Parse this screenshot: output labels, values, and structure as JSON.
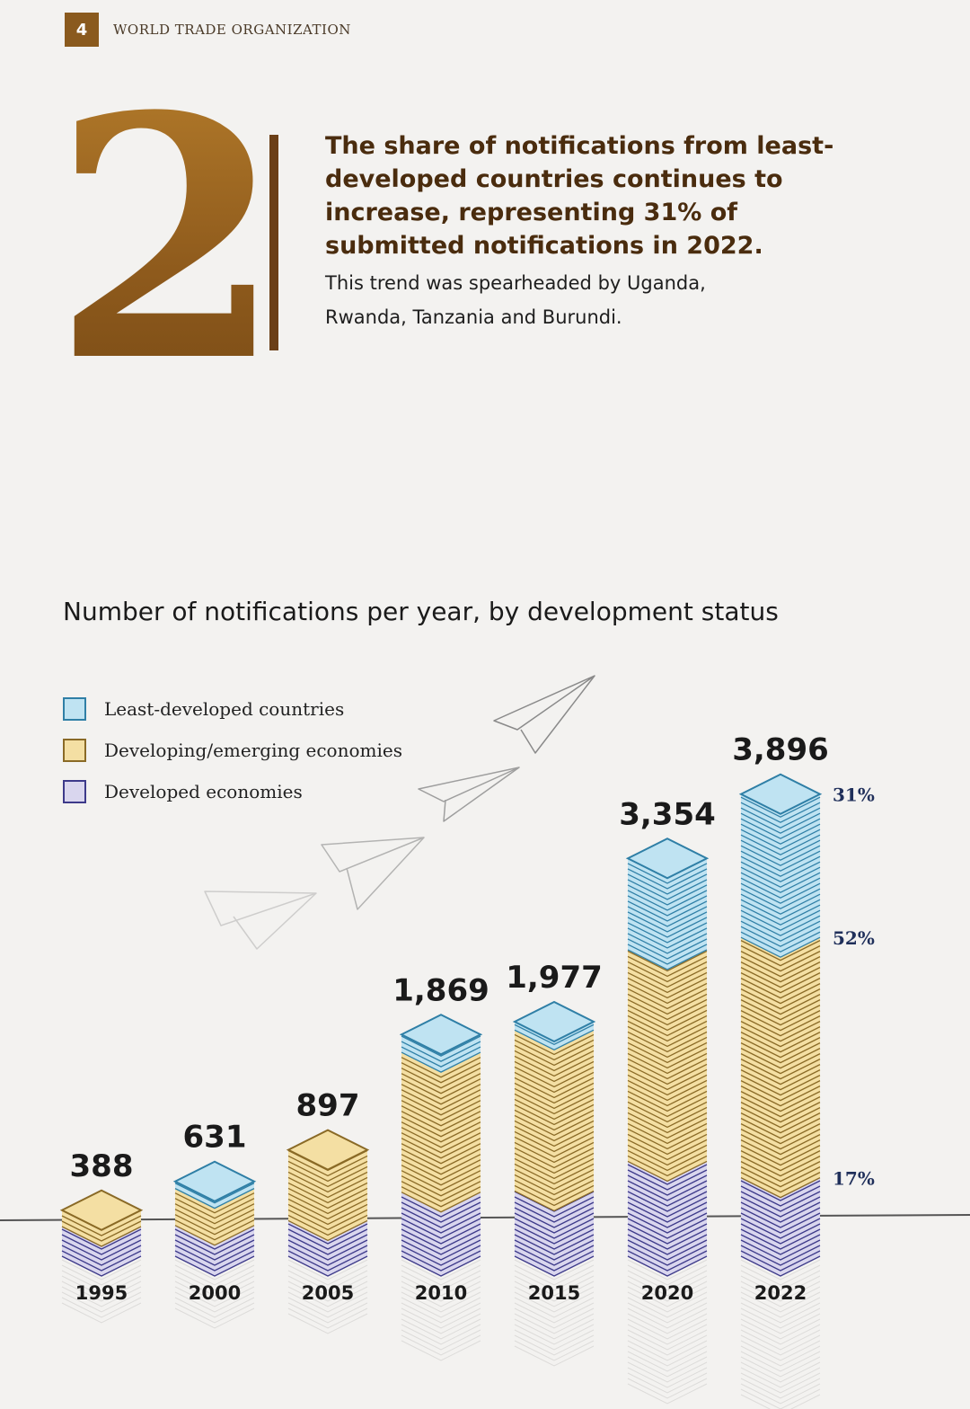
{
  "header": {
    "page_number": "4",
    "organization": "WORLD TRADE ORGANIZATION"
  },
  "feature": {
    "number": "2",
    "headline": "The share of notifications from least-developed countries continues to increase, representing 31% of submitted notifications in 2022.",
    "subtext": "This trend was spearheaded by Uganda, Rwanda, Tanzania and Burundi."
  },
  "colors": {
    "ldc": "#bfe3f2",
    "ldc_stroke": "#2f7fa6",
    "developing": "#f4dfa3",
    "developing_stroke": "#8a6a26",
    "developed": "#d9d6ee",
    "developed_stroke": "#3d3a8a",
    "label": "#1a1a1a",
    "share_label": "#1f2f5a"
  },
  "chart_data": {
    "type": "bar",
    "stacked": true,
    "title": "Number of notifications per year, by development status",
    "categories": [
      "1995",
      "2000",
      "2005",
      "2010",
      "2015",
      "2020",
      "2022"
    ],
    "totals": [
      388,
      631,
      897,
      1869,
      1977,
      3354,
      3896
    ],
    "total_labels": [
      "388",
      "631",
      "897",
      "1,869",
      "1,977",
      "3,354",
      "3,896"
    ],
    "series": [
      {
        "key": "developed",
        "name": "Developed economies",
        "values": [
          250,
          260,
          300,
          540,
          550,
          800,
          662
        ]
      },
      {
        "key": "developing",
        "name": "Developing/emerging economies",
        "values": [
          138,
          311,
          597,
          1179,
          1357,
          1784,
          2026
        ]
      },
      {
        "key": "ldc",
        "name": "Least-developed countries",
        "values": [
          0,
          60,
          0,
          150,
          70,
          770,
          1208
        ]
      }
    ],
    "legend_order": [
      "ldc",
      "developing",
      "developed"
    ],
    "legend_position": "top-left",
    "annotations": [
      {
        "category": "2022",
        "series": "ldc",
        "label": "31%"
      },
      {
        "category": "2022",
        "series": "developing",
        "label": "52%"
      },
      {
        "category": "2022",
        "series": "developed",
        "label": "17%"
      }
    ]
  }
}
